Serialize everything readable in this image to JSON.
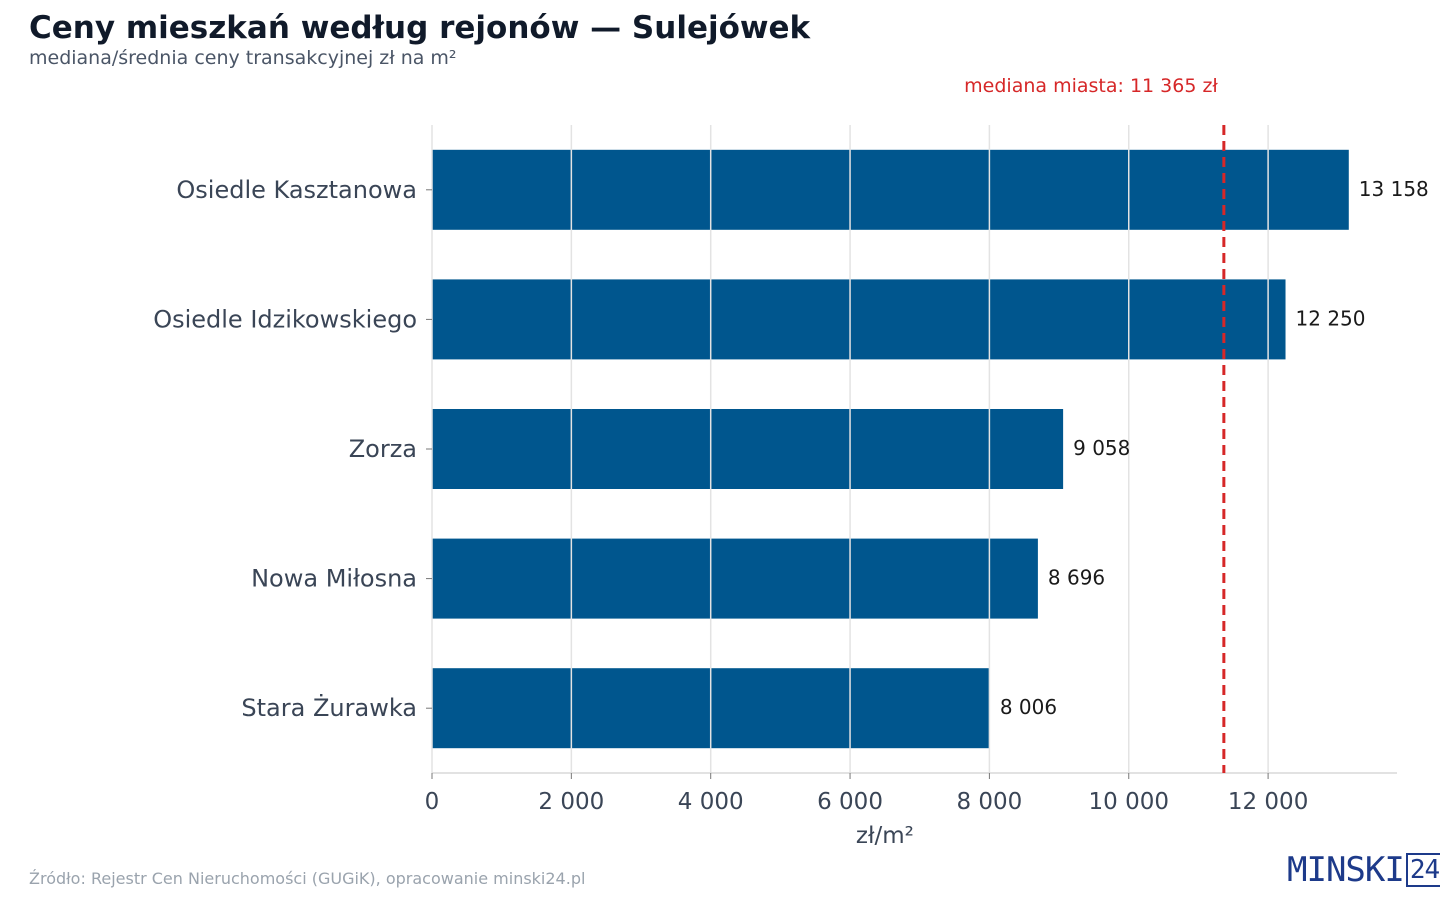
{
  "header": {
    "title": "Ceny mieszkań według rejonów — Sulejówek",
    "subtitle": "mediana/średnia ceny transakcyjnej zł na m²"
  },
  "footer": {
    "source": "Źródło: Rejestr Cen Nieruchomości (GUGiK), opracowanie minski24.pl",
    "logo_text": "MINSKI",
    "logo_num": "24"
  },
  "colors": {
    "bar": "#00568e",
    "reference_line": "#d62728",
    "grid": "#e3e3e3"
  },
  "chart_data": {
    "type": "bar",
    "orientation": "horizontal",
    "title": "Ceny mieszkań według rejonów — Sulejówek",
    "subtitle": "mediana/średnia ceny transakcyjnej zł na m²",
    "xlabel": "zł/m²",
    "categories": [
      "Osiedle Kasztanowa",
      "Osiedle Idzikowskiego",
      "Zorza",
      "Nowa Miłosna",
      "Stara Żurawka"
    ],
    "values": [
      13158,
      12250,
      9058,
      8696,
      8006
    ],
    "value_labels": [
      "13 158",
      "12 250",
      "9 058",
      "8 696",
      "8 006"
    ],
    "xlim": [
      0,
      13850
    ],
    "xticks": [
      0,
      2000,
      4000,
      6000,
      8000,
      10000,
      12000
    ],
    "xtick_labels": [
      "0",
      "2 000",
      "4 000",
      "6 000",
      "8 000",
      "10 000",
      "12 000"
    ],
    "grid": true,
    "reference_line": {
      "value": 11365,
      "label": "mediana miasta: 11 365 zł",
      "style": "dashed"
    }
  }
}
